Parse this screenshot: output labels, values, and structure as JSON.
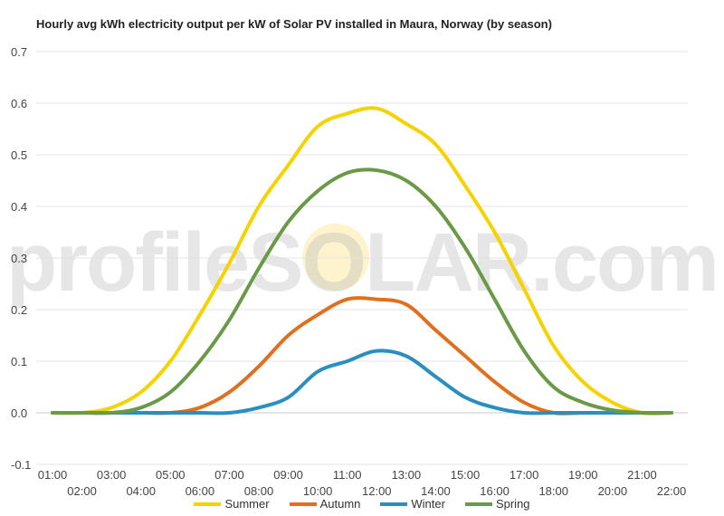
{
  "chart_data": {
    "type": "line",
    "title": "Hourly avg kWh electricity output per kW of Solar PV installed in Maura, Norway (by season)",
    "xlabel": "",
    "ylabel": "",
    "ylim": [
      -0.1,
      0.7
    ],
    "yticks": [
      "-0.1",
      "0.0",
      "0.1",
      "0.2",
      "0.3",
      "0.4",
      "0.5",
      "0.6",
      "0.7"
    ],
    "x": [
      "01:00",
      "02:00",
      "03:00",
      "04:00",
      "05:00",
      "06:00",
      "07:00",
      "08:00",
      "09:00",
      "10:00",
      "11:00",
      "12:00",
      "13:00",
      "14:00",
      "15:00",
      "16:00",
      "17:00",
      "18:00",
      "19:00",
      "20:00",
      "21:00",
      "22:00"
    ],
    "grid": true,
    "legend_position": "bottom",
    "series": [
      {
        "name": "Summer",
        "color": "#f5d200",
        "values": [
          0,
          0,
          0.01,
          0.04,
          0.1,
          0.19,
          0.29,
          0.4,
          0.48,
          0.555,
          0.58,
          0.59,
          0.56,
          0.52,
          0.44,
          0.35,
          0.24,
          0.13,
          0.06,
          0.02,
          0,
          0
        ]
      },
      {
        "name": "Autumn",
        "color": "#e07020",
        "values": [
          0,
          0,
          0,
          0,
          0,
          0.01,
          0.04,
          0.09,
          0.15,
          0.19,
          0.22,
          0.22,
          0.21,
          0.16,
          0.11,
          0.06,
          0.02,
          0,
          0,
          0,
          0,
          0
        ]
      },
      {
        "name": "Winter",
        "color": "#2a8fc0",
        "values": [
          0,
          0,
          0,
          0,
          0,
          0,
          0,
          0.01,
          0.03,
          0.08,
          0.1,
          0.12,
          0.11,
          0.07,
          0.03,
          0.01,
          0,
          0,
          0,
          0,
          0,
          0
        ]
      },
      {
        "name": "Spring",
        "color": "#6a9a48",
        "values": [
          0,
          0,
          0,
          0.01,
          0.04,
          0.1,
          0.18,
          0.28,
          0.37,
          0.43,
          0.465,
          0.47,
          0.45,
          0.4,
          0.32,
          0.22,
          0.12,
          0.05,
          0.02,
          0.005,
          0,
          0
        ]
      }
    ]
  },
  "watermark": "profileSOLAR.com"
}
